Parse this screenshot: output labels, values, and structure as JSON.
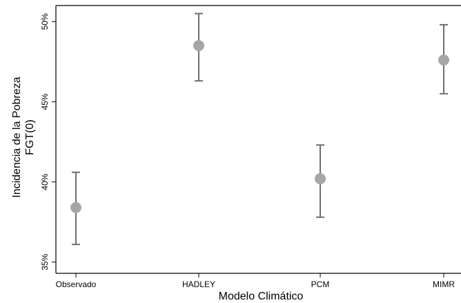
{
  "chart_data": {
    "type": "scatter",
    "subtype": "point-with-error-bars",
    "categories": [
      "Observado",
      "HADLEY",
      "PCM",
      "MIMR"
    ],
    "values": [
      38.4,
      48.5,
      40.2,
      47.6
    ],
    "error_low": [
      36.1,
      46.3,
      37.8,
      45.5
    ],
    "error_high": [
      40.6,
      50.5,
      42.3,
      49.8
    ],
    "xlabel": "Modelo Climático",
    "ylabel_lines": [
      "Incidencia de la Pobreza",
      "FGT(0)"
    ],
    "ylim": [
      34.3,
      51.0
    ],
    "yticks": [
      35,
      40,
      45,
      50
    ],
    "ytick_labels": [
      "35%",
      "40%",
      "45%",
      "50%"
    ],
    "grid": false,
    "colors": {
      "point": "#a6a6a6",
      "errbar": "#6e6e6e",
      "axis": "#000000"
    }
  }
}
